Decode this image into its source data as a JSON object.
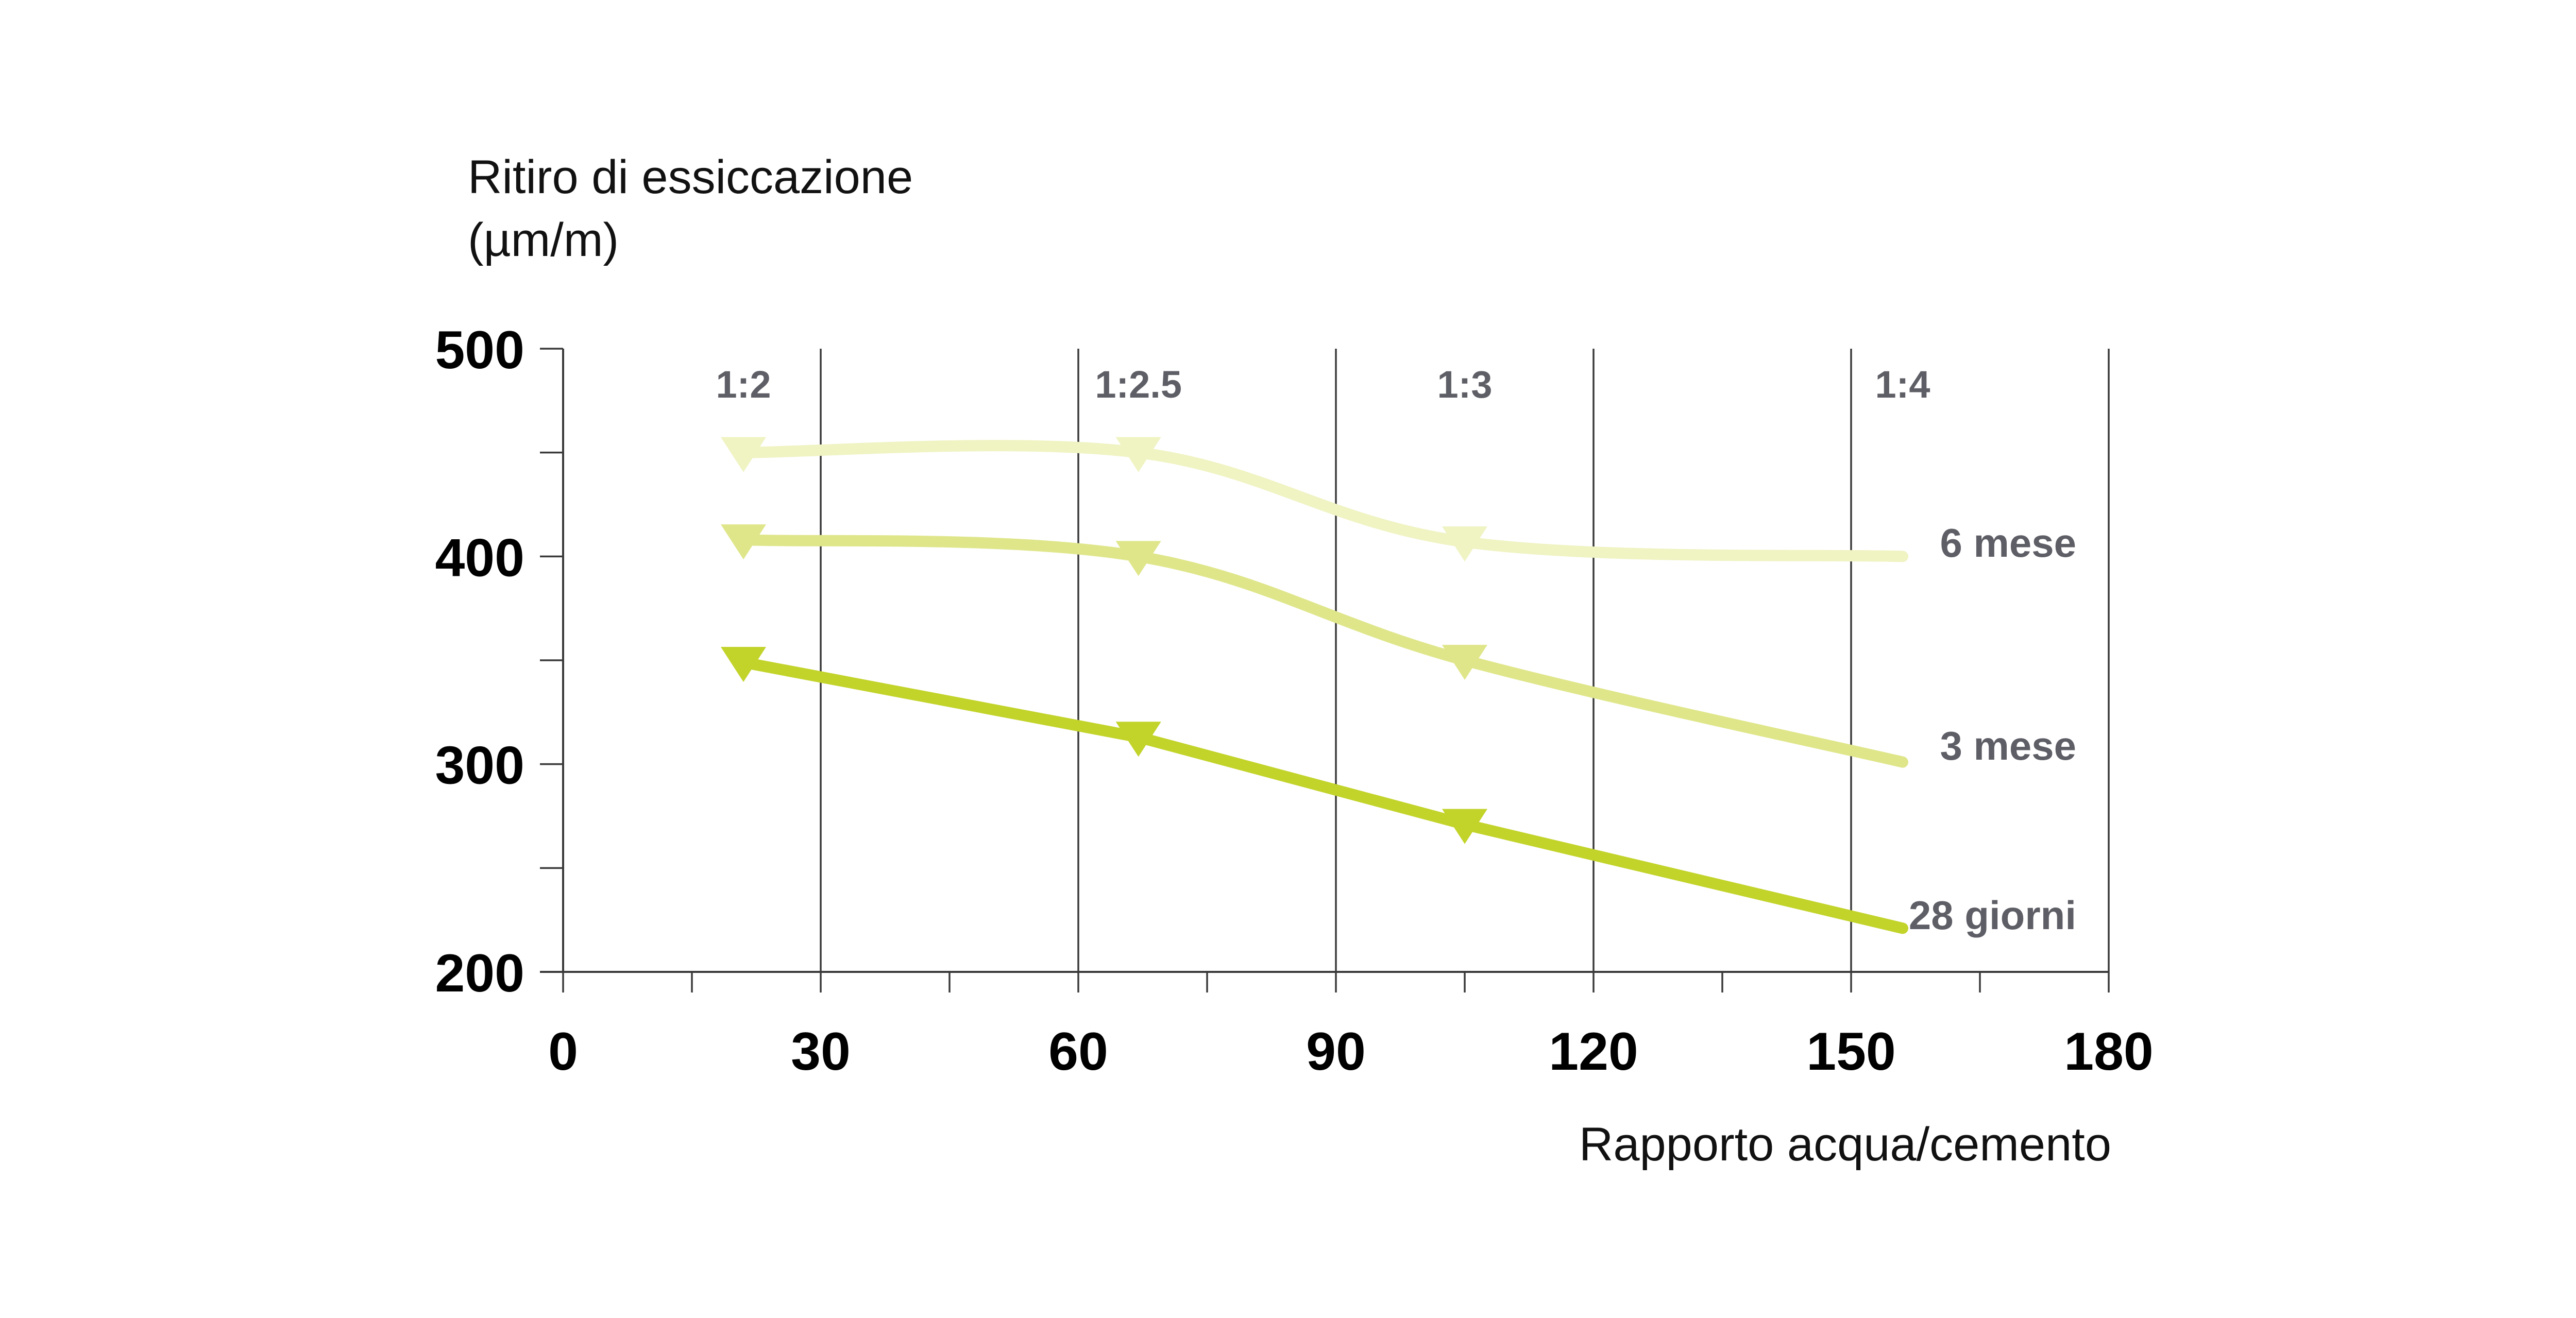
{
  "chart_data": {
    "type": "line",
    "ylabel_lines": [
      "Ritiro di essiccazione",
      "(µm/m)"
    ],
    "xlabel": "Rapporto acqua/cemento",
    "xlim": [
      0,
      180
    ],
    "ylim": [
      200,
      500
    ],
    "x_ticks": [
      "0",
      "30",
      "60",
      "90",
      "120",
      "150",
      "180"
    ],
    "y_ticks": [
      "200",
      "300",
      "400",
      "500"
    ],
    "grid": "vertical",
    "ratio_annotations": [
      {
        "text": "1:2",
        "x": 21
      },
      {
        "text": "1:2.5",
        "x": 67
      },
      {
        "text": "1:3",
        "x": 105
      },
      {
        "text": "1:4",
        "x": 156
      }
    ],
    "series": [
      {
        "name": "6 mese",
        "color": "#f0f3c2",
        "x": [
          21,
          67,
          105,
          156
        ],
        "values": [
          450,
          450,
          407,
          400
        ],
        "smooth": true,
        "markers": [
          21,
          67,
          105
        ]
      },
      {
        "name": "3 mese",
        "color": "#dfe68a",
        "x": [
          21,
          67,
          105,
          156
        ],
        "values": [
          408,
          400,
          350,
          301
        ],
        "smooth": true,
        "markers": [
          21,
          67,
          105
        ]
      },
      {
        "name": "28 giorni",
        "color": "#c2d32a",
        "x": [
          21,
          67,
          105,
          156
        ],
        "values": [
          349,
          313,
          271,
          221
        ],
        "smooth": false,
        "markers": [
          21,
          67,
          105
        ]
      }
    ]
  }
}
